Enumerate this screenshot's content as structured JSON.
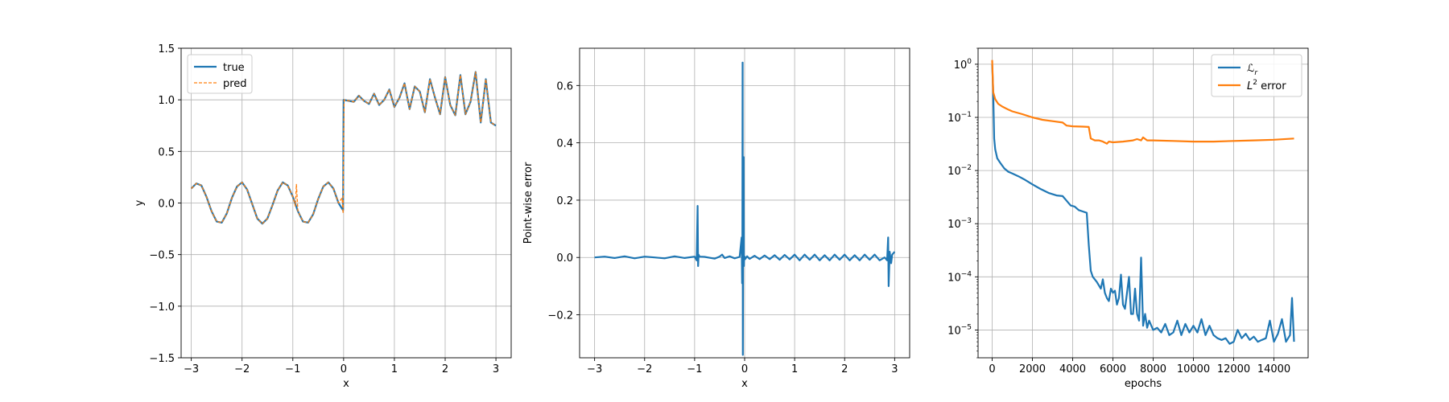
{
  "chart_data": [
    {
      "type": "line",
      "xlabel": "x",
      "ylabel": "y",
      "xlim": [
        -3.2,
        3.3
      ],
      "ylim": [
        -1.5,
        1.5
      ],
      "xticks": [
        -3,
        -2,
        -1,
        0,
        1,
        2,
        3
      ],
      "xtick_labels": [
        "−3",
        "−2",
        "−1",
        "0",
        "1",
        "2",
        "3"
      ],
      "yticks": [
        -1.5,
        -1.0,
        -0.5,
        0.0,
        0.5,
        1.0,
        1.5
      ],
      "ytick_labels": [
        "−1.5",
        "−1.0",
        "−0.5",
        "0.0",
        "0.5",
        "1.0",
        "1.5"
      ],
      "grid": true,
      "legend_position": "top-left",
      "series": [
        {
          "name": "true",
          "color": "#1f77b4",
          "style": "solid",
          "x": [
            -3.0,
            -2.9,
            -2.8,
            -2.7,
            -2.6,
            -2.5,
            -2.4,
            -2.3,
            -2.2,
            -2.1,
            -2.0,
            -1.9,
            -1.8,
            -1.7,
            -1.6,
            -1.5,
            -1.4,
            -1.3,
            -1.2,
            -1.1,
            -1.0,
            -0.9,
            -0.8,
            -0.7,
            -0.6,
            -0.5,
            -0.4,
            -0.3,
            -0.2,
            -0.1,
            -0.01,
            0.0,
            0.1,
            0.2,
            0.3,
            0.4,
            0.5,
            0.6,
            0.7,
            0.8,
            0.9,
            1.0,
            1.1,
            1.2,
            1.3,
            1.4,
            1.5,
            1.6,
            1.7,
            1.8,
            1.9,
            2.0,
            2.1,
            2.2,
            2.3,
            2.4,
            2.5,
            2.6,
            2.7,
            2.8,
            2.9,
            3.0
          ],
          "y": [
            0.14,
            0.19,
            0.17,
            0.06,
            -0.08,
            -0.18,
            -0.19,
            -0.1,
            0.05,
            0.16,
            0.2,
            0.13,
            -0.01,
            -0.15,
            -0.2,
            -0.15,
            -0.02,
            0.12,
            0.2,
            0.17,
            0.06,
            -0.08,
            -0.18,
            -0.19,
            -0.11,
            0.04,
            0.16,
            0.2,
            0.14,
            0.0,
            -0.07,
            1.0,
            0.99,
            0.98,
            1.04,
            0.99,
            0.96,
            1.06,
            0.95,
            1.0,
            1.1,
            0.93,
            1.02,
            1.16,
            0.91,
            1.13,
            1.08,
            0.88,
            1.2,
            1.02,
            0.86,
            1.22,
            0.95,
            0.85,
            1.24,
            0.86,
            0.98,
            1.27,
            0.78,
            1.2,
            0.78,
            0.75
          ]
        },
        {
          "name": "pred",
          "color": "#ff7f0e",
          "style": "dashed",
          "x": [
            -3.0,
            -2.9,
            -2.8,
            -2.7,
            -2.6,
            -2.5,
            -2.4,
            -2.3,
            -2.2,
            -2.1,
            -2.0,
            -1.9,
            -1.8,
            -1.7,
            -1.6,
            -1.5,
            -1.4,
            -1.3,
            -1.2,
            -1.1,
            -1.0,
            -0.95,
            -0.93,
            -0.9,
            -0.8,
            -0.7,
            -0.6,
            -0.5,
            -0.4,
            -0.3,
            -0.2,
            -0.1,
            -0.03,
            -0.01,
            0.0,
            0.01,
            0.1,
            0.2,
            0.3,
            0.4,
            0.5,
            0.6,
            0.7,
            0.8,
            0.9,
            1.0,
            1.1,
            1.2,
            1.3,
            1.4,
            1.5,
            1.6,
            1.7,
            1.8,
            1.9,
            2.0,
            2.1,
            2.2,
            2.3,
            2.4,
            2.5,
            2.6,
            2.7,
            2.8,
            2.9,
            3.0
          ],
          "y": [
            0.14,
            0.19,
            0.17,
            0.06,
            -0.08,
            -0.18,
            -0.19,
            -0.1,
            0.05,
            0.16,
            0.2,
            0.13,
            -0.01,
            -0.15,
            -0.2,
            -0.15,
            -0.02,
            0.12,
            0.2,
            0.17,
            0.06,
            -0.03,
            0.18,
            -0.08,
            -0.18,
            -0.19,
            -0.11,
            0.04,
            0.16,
            0.2,
            0.14,
            0.0,
            0.05,
            -0.1,
            0.62,
            1.0,
            0.99,
            0.98,
            1.04,
            0.99,
            0.96,
            1.06,
            0.95,
            1.0,
            1.1,
            0.93,
            1.02,
            1.16,
            0.91,
            1.13,
            1.08,
            0.88,
            1.2,
            1.02,
            0.86,
            1.22,
            0.95,
            0.85,
            1.24,
            0.86,
            0.98,
            1.27,
            0.78,
            1.2,
            0.78,
            0.75
          ]
        }
      ]
    },
    {
      "type": "line",
      "xlabel": "x",
      "ylabel": "Point-wise error",
      "xlim": [
        -3.3,
        3.3
      ],
      "ylim": [
        -0.35,
        0.73
      ],
      "xticks": [
        -3,
        -2,
        -1,
        0,
        1,
        2,
        3
      ],
      "xtick_labels": [
        "−3",
        "−2",
        "−1",
        "0",
        "1",
        "2",
        "3"
      ],
      "yticks": [
        -0.2,
        0.0,
        0.2,
        0.4,
        0.6
      ],
      "ytick_labels": [
        "−0.2",
        "0.0",
        "0.2",
        "0.4",
        "0.6"
      ],
      "grid": true,
      "series": [
        {
          "color": "#1f77b4",
          "style": "solid",
          "x": [
            -3.0,
            -2.8,
            -2.6,
            -2.4,
            -2.2,
            -2.0,
            -1.8,
            -1.6,
            -1.4,
            -1.2,
            -1.0,
            -0.96,
            -0.94,
            -0.93,
            -0.92,
            -0.9,
            -0.8,
            -0.6,
            -0.5,
            -0.45,
            -0.4,
            -0.3,
            -0.2,
            -0.1,
            -0.06,
            -0.05,
            -0.045,
            -0.04,
            -0.035,
            -0.03,
            -0.02,
            -0.015,
            -0.01,
            0.0,
            0.01,
            0.05,
            0.1,
            0.2,
            0.3,
            0.4,
            0.5,
            0.6,
            0.7,
            0.8,
            0.9,
            1.0,
            1.1,
            1.2,
            1.3,
            1.4,
            1.5,
            1.6,
            1.7,
            1.8,
            1.9,
            2.0,
            2.1,
            2.2,
            2.3,
            2.4,
            2.5,
            2.6,
            2.7,
            2.8,
            2.85,
            2.87,
            2.88,
            2.9,
            2.93,
            2.95,
            3.0
          ],
          "y": [
            0.0,
            0.003,
            -0.002,
            0.004,
            -0.003,
            0.003,
            0.0,
            -0.003,
            0.004,
            -0.002,
            0.003,
            -0.01,
            0.18,
            -0.03,
            0.01,
            0.003,
            0.002,
            -0.004,
            0.003,
            0.01,
            -0.002,
            0.004,
            -0.003,
            0.002,
            0.07,
            -0.09,
            0.01,
            0.68,
            -0.34,
            0.05,
            0.35,
            -0.03,
            0.0,
            0.003,
            -0.006,
            0.004,
            -0.005,
            0.006,
            -0.006,
            0.007,
            -0.006,
            0.008,
            -0.008,
            0.009,
            -0.007,
            0.01,
            -0.01,
            0.01,
            -0.008,
            0.01,
            -0.01,
            0.008,
            -0.01,
            0.01,
            -0.008,
            0.01,
            -0.01,
            0.008,
            -0.01,
            0.01,
            -0.008,
            0.01,
            -0.01,
            0.0,
            -0.01,
            0.07,
            -0.1,
            0.02,
            -0.02,
            0.01,
            0.02
          ]
        }
      ]
    },
    {
      "type": "line",
      "xlabel": "epochs",
      "ylabel": "",
      "yscale": "log",
      "xlim": [
        -700,
        15700
      ],
      "ylim": [
        3e-06,
        2.0
      ],
      "xticks": [
        0,
        2000,
        4000,
        6000,
        8000,
        10000,
        12000,
        14000
      ],
      "xtick_labels": [
        "0",
        "2000",
        "4000",
        "6000",
        "8000",
        "10000",
        "12000",
        "14000"
      ],
      "yticks_exponents": [
        -5,
        -4,
        -3,
        -2,
        -1,
        0
      ],
      "grid": true,
      "legend_position": "top-right",
      "series": [
        {
          "name_main": "ℒ",
          "name_sub": "r",
          "color": "#1f77b4",
          "style": "solid",
          "x": [
            0,
            50,
            100,
            150,
            250,
            400,
            600,
            800,
            1000,
            1300,
            1600,
            2000,
            2400,
            2800,
            3200,
            3500,
            3700,
            3900,
            4100,
            4300,
            4500,
            4700,
            4800,
            4900,
            5000,
            5200,
            5400,
            5500,
            5600,
            5700,
            5800,
            5900,
            6000,
            6100,
            6200,
            6300,
            6400,
            6500,
            6600,
            6700,
            6800,
            6900,
            7000,
            7100,
            7200,
            7300,
            7400,
            7500,
            7600,
            7700,
            7800,
            8000,
            8200,
            8400,
            8600,
            8800,
            9000,
            9200,
            9400,
            9600,
            9800,
            10000,
            10200,
            10400,
            10600,
            10800,
            11000,
            11200,
            11400,
            11600,
            11800,
            12000,
            12200,
            12400,
            12600,
            12800,
            13000,
            13200,
            13400,
            13600,
            13800,
            14000,
            14200,
            14400,
            14600,
            14800,
            14900,
            15000
          ],
          "y": [
            1.0,
            0.3,
            0.04,
            0.025,
            0.017,
            0.014,
            0.011,
            0.0095,
            0.0088,
            0.0078,
            0.0068,
            0.0055,
            0.0045,
            0.0038,
            0.0034,
            0.0033,
            0.0027,
            0.0022,
            0.0021,
            0.0018,
            0.0017,
            0.0016,
            0.0004,
            0.00013,
            0.0001,
            8e-05,
            6e-05,
            9e-05,
            5e-05,
            4e-05,
            3.5e-05,
            6e-05,
            5e-05,
            5.5e-05,
            3e-05,
            4e-05,
            0.00011,
            3e-05,
            2.5e-05,
            5e-05,
            0.0001,
            2e-05,
            2e-05,
            6e-05,
            2e-05,
            1.5e-05,
            0.00023,
            1.2e-05,
            2e-05,
            1.1e-05,
            1.5e-05,
            1e-05,
            1.1e-05,
            9e-06,
            1.3e-05,
            8e-06,
            9e-06,
            1.5e-05,
            8e-06,
            1.3e-05,
            9e-06,
            1.2e-05,
            9e-06,
            1.6e-05,
            8e-06,
            1.2e-05,
            8e-06,
            7e-06,
            6.5e-06,
            7e-06,
            5.5e-06,
            6e-06,
            1e-05,
            7e-06,
            8.5e-06,
            6.5e-06,
            7.5e-06,
            6e-06,
            6.5e-06,
            7e-06,
            1.5e-05,
            6e-06,
            8.5e-06,
            1.6e-05,
            6e-06,
            8e-06,
            4e-05,
            6e-06
          ]
        },
        {
          "name_main": "L",
          "name_sup": "2",
          "name_rest": " error",
          "color": "#ff7f0e",
          "style": "solid",
          "x": [
            0,
            50,
            150,
            300,
            500,
            800,
            1000,
            1500,
            2000,
            2500,
            3000,
            3500,
            3700,
            4000,
            4500,
            4800,
            4900,
            5100,
            5300,
            5500,
            5700,
            5800,
            6000,
            6500,
            7000,
            7200,
            7400,
            7500,
            7700,
            8000,
            9000,
            10000,
            11000,
            12000,
            13000,
            14000,
            15000
          ],
          "y": [
            1.2,
            0.3,
            0.22,
            0.18,
            0.16,
            0.14,
            0.13,
            0.115,
            0.1,
            0.09,
            0.085,
            0.08,
            0.07,
            0.068,
            0.067,
            0.066,
            0.04,
            0.037,
            0.037,
            0.035,
            0.032,
            0.035,
            0.034,
            0.035,
            0.037,
            0.039,
            0.037,
            0.042,
            0.037,
            0.037,
            0.036,
            0.035,
            0.035,
            0.036,
            0.037,
            0.038,
            0.04
          ]
        }
      ]
    }
  ]
}
